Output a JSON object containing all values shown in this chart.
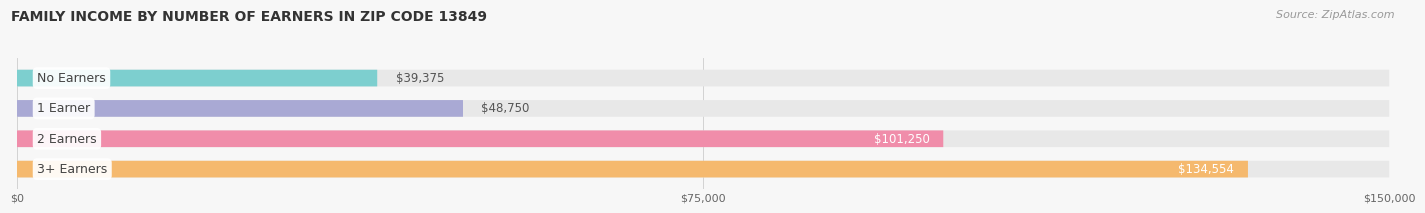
{
  "title": "FAMILY INCOME BY NUMBER OF EARNERS IN ZIP CODE 13849",
  "source": "Source: ZipAtlas.com",
  "categories": [
    "No Earners",
    "1 Earner",
    "2 Earners",
    "3+ Earners"
  ],
  "values": [
    39375,
    48750,
    101250,
    134554
  ],
  "bar_colors": [
    "#7dcfcf",
    "#a9a9d4",
    "#f08daa",
    "#f5b96e"
  ],
  "bar_bg_color": "#e8e8e8",
  "value_labels": [
    "$39,375",
    "$48,750",
    "$101,250",
    "$134,554"
  ],
  "xmax": 150000,
  "xtick_labels": [
    "$0",
    "$75,000",
    "$150,000"
  ],
  "xtick_vals": [
    0,
    75000,
    150000
  ],
  "bg_color": "#f7f7f7",
  "title_fontsize": 10,
  "source_fontsize": 8,
  "label_fontsize": 9,
  "value_fontsize": 8.5
}
